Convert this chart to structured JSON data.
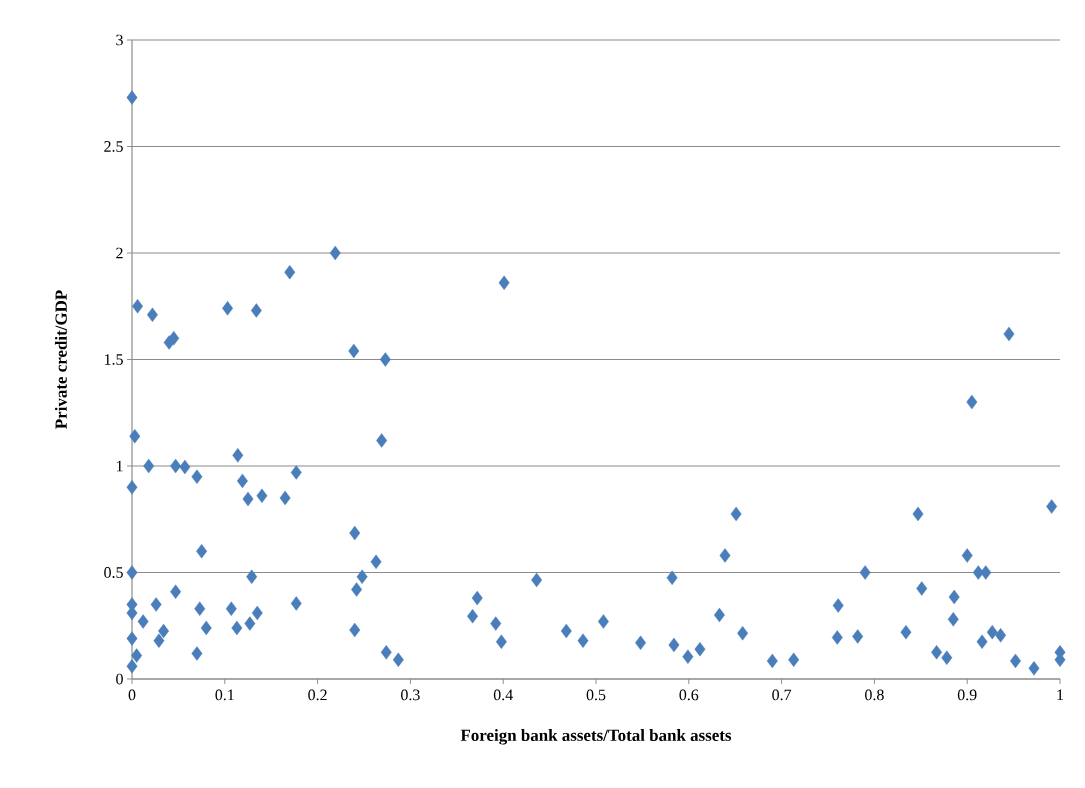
{
  "chart_data": {
    "type": "scatter",
    "xlabel": "Foreign bank assets/Total bank assets",
    "ylabel": "Private credit/GDP",
    "xlim": [
      0,
      1
    ],
    "ylim": [
      0,
      3
    ],
    "xticks": [
      0,
      0.1,
      0.2,
      0.3,
      0.4,
      0.5,
      0.6,
      0.7,
      0.8,
      0.9,
      1
    ],
    "yticks": [
      0,
      0.5,
      1,
      1.5,
      2,
      2.5,
      3
    ],
    "grid": "y",
    "marker": "diamond",
    "series": [
      {
        "color": "#4a7ebb",
        "x": [
          0,
          0.219,
          0.17,
          0.006,
          0.022,
          0.103,
          0.134,
          0.04,
          0.045,
          0.239,
          0.273,
          0.003,
          0.269,
          0.018,
          0.047,
          0.057,
          0.07,
          0.114,
          0.119,
          0.125,
          0.14,
          0.165,
          0.177,
          0,
          0.24,
          0.075,
          0.263,
          0,
          0.129,
          0.248,
          0.242,
          0.047,
          0,
          0.026,
          0.177,
          0.073,
          0.107,
          0.135,
          0,
          0.012,
          0.127,
          0.08,
          0.113,
          0.24,
          0.034,
          0.029,
          0,
          0.07,
          0.005,
          0.274,
          0.287,
          0,
          0.401,
          0.372,
          0.367,
          0.392,
          0.398,
          0.436,
          0.468,
          0.486,
          0.508,
          0.548,
          0.582,
          0.584,
          0.599,
          0.612,
          0.633,
          0.639,
          0.651,
          0.658,
          0.945,
          0.905,
          0.847,
          0.991,
          0.9,
          0.79,
          0.912,
          0.92,
          0.851,
          0.886,
          0.761,
          0.885,
          0.834,
          0.76,
          0.782,
          0.916,
          0.927,
          0.936,
          0.867,
          0.878,
          0.69,
          0.713,
          0.952,
          0.972,
          1.0,
          1.0
        ],
        "values": [
          2.73,
          2.0,
          1.91,
          1.75,
          1.71,
          1.74,
          1.73,
          1.58,
          1.6,
          1.54,
          1.5,
          1.14,
          1.12,
          1.0,
          1.0,
          0.995,
          0.95,
          1.05,
          0.93,
          0.845,
          0.86,
          0.85,
          0.97,
          0.9,
          0.685,
          0.6,
          0.55,
          0.5,
          0.48,
          0.48,
          0.42,
          0.41,
          0.35,
          0.35,
          0.355,
          0.33,
          0.33,
          0.31,
          0.31,
          0.27,
          0.26,
          0.24,
          0.24,
          0.23,
          0.225,
          0.18,
          0.19,
          0.12,
          0.11,
          0.125,
          0.09,
          0.06,
          1.86,
          0.38,
          0.295,
          0.26,
          0.175,
          0.465,
          0.225,
          0.18,
          0.27,
          0.17,
          0.475,
          0.16,
          0.105,
          0.14,
          0.3,
          0.58,
          0.775,
          0.215,
          1.62,
          1.3,
          0.775,
          0.81,
          0.58,
          0.5,
          0.5,
          0.5,
          0.425,
          0.385,
          0.345,
          0.28,
          0.22,
          0.195,
          0.2,
          0.175,
          0.22,
          0.205,
          0.125,
          0.1,
          0.085,
          0.09,
          0.085,
          0.05,
          0.125,
          0.09
        ]
      }
    ]
  }
}
